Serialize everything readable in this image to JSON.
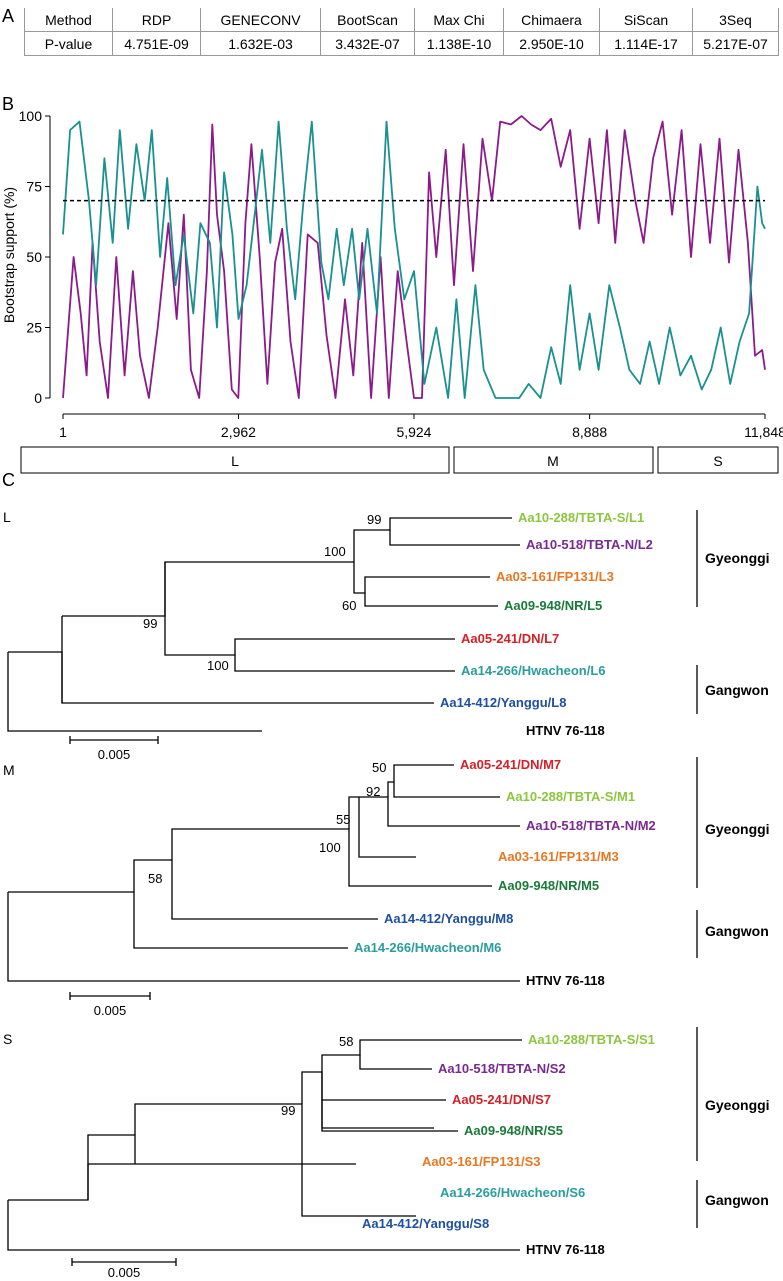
{
  "panels": {
    "a": "A",
    "b": "B",
    "c": "C"
  },
  "recomb_table": {
    "headers": [
      "Method",
      "RDP",
      "GENECONV",
      "BootScan",
      "Max Chi",
      "Chimaera",
      "SiScan",
      "3Seq"
    ],
    "values": [
      "P-value",
      "4.751E-09",
      "1.632E-03",
      "3.432E-07",
      "1.138E-10",
      "2.950E-10",
      "1.114E-17",
      "5.217E-07"
    ]
  },
  "chart_data": {
    "type": "line",
    "ylabel": "Bootstrap support (%)",
    "ylim": [
      0,
      100
    ],
    "yticks": [
      "0",
      "25",
      "50",
      "75",
      "100"
    ],
    "xlim": [
      1,
      11848
    ],
    "xticks": [
      "1",
      "2,962",
      "5,924",
      "8,888",
      "11,848"
    ],
    "threshold": 70,
    "colors": {
      "purple": "#8b1a8b",
      "teal": "#1a9090"
    },
    "series": [
      {
        "name": "purple",
        "points": [
          [
            1,
            0
          ],
          [
            180,
            50
          ],
          [
            300,
            30
          ],
          [
            400,
            8
          ],
          [
            500,
            55
          ],
          [
            620,
            20
          ],
          [
            760,
            0
          ],
          [
            900,
            50
          ],
          [
            1040,
            8
          ],
          [
            1180,
            45
          ],
          [
            1300,
            15
          ],
          [
            1450,
            0
          ],
          [
            1600,
            25
          ],
          [
            1780,
            62
          ],
          [
            1920,
            28
          ],
          [
            2040,
            65
          ],
          [
            2160,
            10
          ],
          [
            2300,
            0
          ],
          [
            2430,
            45
          ],
          [
            2520,
            97
          ],
          [
            2600,
            65
          ],
          [
            2720,
            45
          ],
          [
            2850,
            3
          ],
          [
            2960,
            0
          ],
          [
            3080,
            62
          ],
          [
            3180,
            90
          ],
          [
            3320,
            50
          ],
          [
            3450,
            5
          ],
          [
            3580,
            48
          ],
          [
            3700,
            60
          ],
          [
            3840,
            20
          ],
          [
            3980,
            0
          ],
          [
            4130,
            58
          ],
          [
            4300,
            55
          ],
          [
            4450,
            22
          ],
          [
            4600,
            0
          ],
          [
            4760,
            35
          ],
          [
            4900,
            8
          ],
          [
            5050,
            55
          ],
          [
            5200,
            0
          ],
          [
            5360,
            50
          ],
          [
            5500,
            0
          ],
          [
            5650,
            45
          ],
          [
            5800,
            20
          ],
          [
            5924,
            0
          ],
          [
            6060,
            0
          ],
          [
            6180,
            80
          ],
          [
            6300,
            50
          ],
          [
            6460,
            88
          ],
          [
            6600,
            40
          ],
          [
            6760,
            90
          ],
          [
            6920,
            45
          ],
          [
            7080,
            92
          ],
          [
            7240,
            70
          ],
          [
            7380,
            98
          ],
          [
            7560,
            97
          ],
          [
            7740,
            100
          ],
          [
            7900,
            97
          ],
          [
            8060,
            95
          ],
          [
            8240,
            99
          ],
          [
            8400,
            82
          ],
          [
            8560,
            95
          ],
          [
            8720,
            60
          ],
          [
            8888,
            92
          ],
          [
            9040,
            62
          ],
          [
            9180,
            95
          ],
          [
            9320,
            55
          ],
          [
            9480,
            95
          ],
          [
            9660,
            70
          ],
          [
            9800,
            55
          ],
          [
            9960,
            85
          ],
          [
            10120,
            98
          ],
          [
            10280,
            65
          ],
          [
            10440,
            95
          ],
          [
            10600,
            50
          ],
          [
            10760,
            90
          ],
          [
            10920,
            55
          ],
          [
            11080,
            92
          ],
          [
            11240,
            48
          ],
          [
            11400,
            88
          ],
          [
            11560,
            55
          ],
          [
            11680,
            15
          ],
          [
            11800,
            17
          ],
          [
            11848,
            10
          ]
        ]
      },
      {
        "name": "teal",
        "points": [
          [
            1,
            58
          ],
          [
            120,
            95
          ],
          [
            280,
            98
          ],
          [
            440,
            70
          ],
          [
            560,
            40
          ],
          [
            700,
            85
          ],
          [
            840,
            55
          ],
          [
            960,
            95
          ],
          [
            1100,
            60
          ],
          [
            1240,
            90
          ],
          [
            1380,
            70
          ],
          [
            1500,
            95
          ],
          [
            1640,
            50
          ],
          [
            1760,
            78
          ],
          [
            1900,
            40
          ],
          [
            2040,
            58
          ],
          [
            2200,
            30
          ],
          [
            2320,
            62
          ],
          [
            2480,
            55
          ],
          [
            2600,
            25
          ],
          [
            2720,
            80
          ],
          [
            2860,
            58
          ],
          [
            2962,
            28
          ],
          [
            3100,
            40
          ],
          [
            3220,
            62
          ],
          [
            3360,
            88
          ],
          [
            3500,
            55
          ],
          [
            3640,
            98
          ],
          [
            3780,
            60
          ],
          [
            3920,
            35
          ],
          [
            4060,
            70
          ],
          [
            4200,
            98
          ],
          [
            4360,
            48
          ],
          [
            4480,
            35
          ],
          [
            4620,
            60
          ],
          [
            4740,
            40
          ],
          [
            4880,
            60
          ],
          [
            5000,
            35
          ],
          [
            5140,
            60
          ],
          [
            5300,
            30
          ],
          [
            5460,
            98
          ],
          [
            5600,
            60
          ],
          [
            5760,
            35
          ],
          [
            5924,
            45
          ],
          [
            6100,
            5
          ],
          [
            6300,
            25
          ],
          [
            6500,
            0
          ],
          [
            6640,
            35
          ],
          [
            6780,
            0
          ],
          [
            6960,
            40
          ],
          [
            7100,
            10
          ],
          [
            7300,
            0
          ],
          [
            7500,
            0
          ],
          [
            7700,
            0
          ],
          [
            7860,
            5
          ],
          [
            8060,
            0
          ],
          [
            8240,
            18
          ],
          [
            8400,
            5
          ],
          [
            8560,
            40
          ],
          [
            8720,
            10
          ],
          [
            8888,
            30
          ],
          [
            9040,
            10
          ],
          [
            9220,
            40
          ],
          [
            9400,
            25
          ],
          [
            9560,
            10
          ],
          [
            9740,
            5
          ],
          [
            9900,
            20
          ],
          [
            10060,
            5
          ],
          [
            10240,
            25
          ],
          [
            10420,
            8
          ],
          [
            10600,
            15
          ],
          [
            10780,
            3
          ],
          [
            10940,
            10
          ],
          [
            11100,
            25
          ],
          [
            11260,
            5
          ],
          [
            11420,
            20
          ],
          [
            11580,
            30
          ],
          [
            11720,
            75
          ],
          [
            11800,
            62
          ],
          [
            11848,
            60
          ]
        ]
      }
    ]
  },
  "segments": {
    "L": "L",
    "M": "M",
    "S": "S"
  },
  "groups": {
    "gyeonggi": "Gyeonggi",
    "gangwon": "Gangwon"
  },
  "colors": {
    "lightgreen": "#8cc63f",
    "purple": "#7a2a8f",
    "orange": "#e87722",
    "darkgreen": "#1a7a3a",
    "red": "#d62027",
    "teal": "#2a9d9d",
    "blue": "#1f4fa0",
    "black": "#000000"
  },
  "trees": {
    "L": {
      "leaves": [
        "Aa10-288/TBTA-S/L1",
        "Aa10-518/TBTA-N/L2",
        "Aa03-161/FP131/L3",
        "Aa09-948/NR/L5",
        "Aa05-241/DN/L7",
        "Aa14-266/Hwacheon/L6",
        "Aa14-412/Yanggu/L8",
        "HTNV 76-118"
      ],
      "bootstrap": [
        "99",
        "100",
        "60",
        "99",
        "100"
      ],
      "scale": "0.005"
    },
    "M": {
      "leaves": [
        "Aa05-241/DN/M7",
        "Aa10-288/TBTA-S/M1",
        "Aa10-518/TBTA-N/M2",
        "Aa03-161/FP131/M3",
        "Aa09-948/NR/M5",
        "Aa14-412/Yanggu/M8",
        "Aa14-266/Hwacheon/M6",
        "HTNV 76-118"
      ],
      "bootstrap": [
        "50",
        "92",
        "55",
        "100",
        "58"
      ],
      "scale": "0.005"
    },
    "S": {
      "leaves": [
        "Aa10-288/TBTA-S/S1",
        "Aa10-518/TBTA-N/S2",
        "Aa05-241/DN/S7",
        "Aa09-948/NR/S5",
        "Aa03-161/FP131/S3",
        "Aa14-266/Hwacheon/S6",
        "Aa14-412/Yanggu/S8",
        "HTNV 76-118"
      ],
      "bootstrap": [
        "58",
        "99"
      ],
      "scale": "0.005"
    }
  }
}
